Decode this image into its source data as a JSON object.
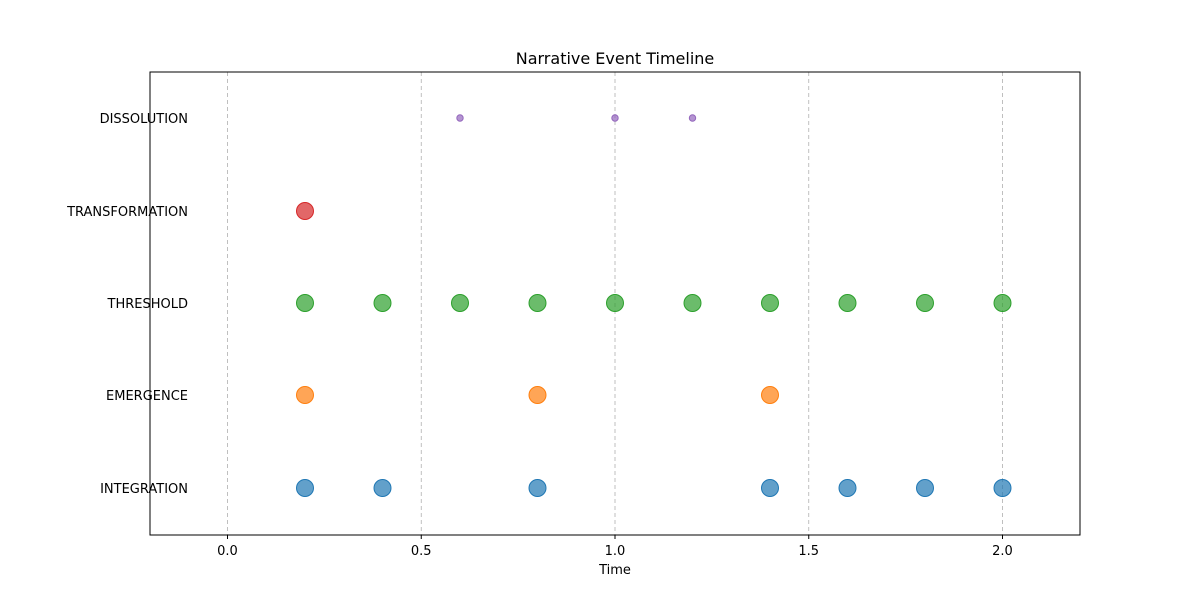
{
  "chart_data": {
    "type": "scatter",
    "title": "Narrative Event Timeline",
    "xlabel": "Time",
    "ylabel": "",
    "xlim": [
      -0.2,
      2.2
    ],
    "x_ticks": [
      "0.0",
      "0.5",
      "1.0",
      "1.5",
      "2.0"
    ],
    "x_tick_values": [
      0.0,
      0.5,
      1.0,
      1.5,
      2.0
    ],
    "grid": "vertical dashed",
    "categories": [
      "INTEGRATION",
      "EMERGENCE",
      "THRESHOLD",
      "TRANSFORMATION",
      "DISSOLUTION"
    ],
    "series": [
      {
        "category": "INTEGRATION",
        "color": "#1f77b4",
        "marker": "large",
        "x": [
          0.2,
          0.4,
          0.8,
          1.4,
          1.6,
          1.8,
          2.0
        ]
      },
      {
        "category": "EMERGENCE",
        "color": "#ff7f0e",
        "marker": "large",
        "x": [
          0.2,
          0.8,
          1.4
        ]
      },
      {
        "category": "THRESHOLD",
        "color": "#2ca02c",
        "marker": "large",
        "x": [
          0.2,
          0.4,
          0.6,
          0.8,
          1.0,
          1.2,
          1.4,
          1.6,
          1.8,
          2.0
        ]
      },
      {
        "category": "TRANSFORMATION",
        "color": "#d62728",
        "marker": "large",
        "x": [
          0.2
        ]
      },
      {
        "category": "DISSOLUTION",
        "color": "#9467bd",
        "marker": "small",
        "x": [
          0.6,
          1.0,
          1.2
        ]
      }
    ]
  }
}
